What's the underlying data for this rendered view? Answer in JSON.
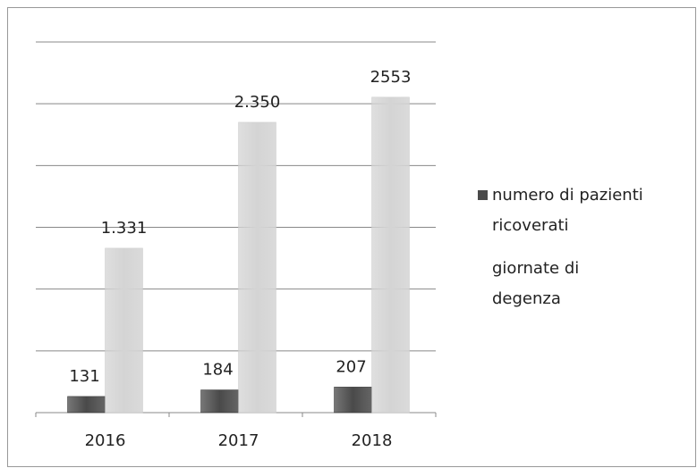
{
  "chart_data": {
    "type": "bar",
    "categories": [
      "2016",
      "2017",
      "2018"
    ],
    "series": [
      {
        "name": "numero di pazienti ricoverati",
        "color": "#4a4a4a",
        "values": [
          131,
          184,
          207
        ]
      },
      {
        "name": "giornate di degenza",
        "color": "#d4d4d4",
        "values": [
          1331,
          2350,
          2553
        ],
        "value_labels": [
          "1.331",
          "2.350",
          "2553"
        ]
      }
    ],
    "ylim": [
      0,
      3000
    ],
    "yticks": [
      0,
      500,
      1000,
      1500,
      2000,
      2500,
      3000
    ],
    "grid": true,
    "legend": "right"
  }
}
